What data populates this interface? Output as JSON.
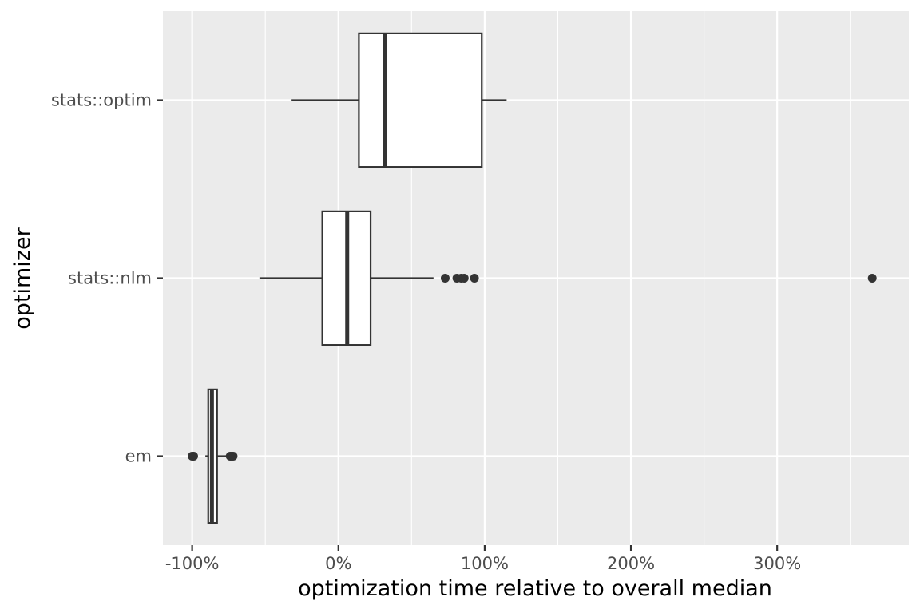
{
  "chart_data": {
    "type": "boxplot",
    "orientation": "horizontal",
    "title": "",
    "xlabel": "optimization time relative to overall median",
    "ylabel": "optimizer",
    "xlim": [
      -120,
      390
    ],
    "x_unit": "percent",
    "x_ticks": [
      -100,
      0,
      100,
      200,
      300
    ],
    "x_tick_labels": [
      "-100%",
      "0%",
      "100%",
      "200%",
      "300%"
    ],
    "categories": [
      "stats::optim",
      "stats::nlm",
      "em"
    ],
    "boxes": [
      {
        "category": "stats::optim",
        "whisker_low": -32,
        "q1": 14,
        "median": 32,
        "q3": 98,
        "whisker_high": 115,
        "outliers": []
      },
      {
        "category": "stats::nlm",
        "whisker_low": -54,
        "q1": -11,
        "median": 6,
        "q3": 22,
        "whisker_high": 65,
        "outliers": [
          73,
          81,
          84,
          86,
          93,
          365
        ]
      },
      {
        "category": "em",
        "whisker_low": -91,
        "q1": -89,
        "median": -86.5,
        "q3": -83,
        "whisker_high": -76,
        "outliers": [
          -100,
          -99,
          -74,
          -73,
          -72
        ]
      }
    ],
    "grid": true,
    "legend": "none",
    "colors": {
      "panel_background": "#ebebeb",
      "grid": "#ffffff",
      "box_fill": "#ffffff",
      "box_stroke": "#333333",
      "outlier": "#333333",
      "tick_text": "#4d4d4d",
      "axis_title": "#000000"
    }
  }
}
